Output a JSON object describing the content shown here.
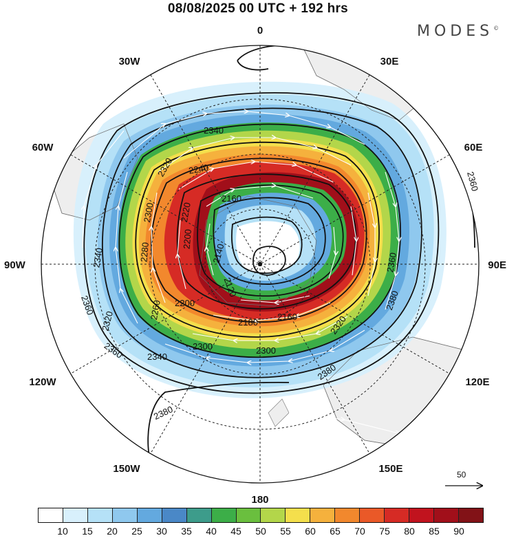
{
  "title": "08/08/2025  00 UTC  + 192 hrs",
  "brand": "MODES",
  "brand_mark": "©",
  "map": {
    "projection": "south-polar-stereographic",
    "longitude_labels": [
      "0",
      "30E",
      "60E",
      "90E",
      "120E",
      "150E",
      "180",
      "150W",
      "120W",
      "90W",
      "60W",
      "30W"
    ],
    "contour_field": "geopotential height",
    "contour_labels": [
      "2340",
      "2320",
      "2240",
      "2300",
      "2220",
      "2160",
      "2140",
      "2200",
      "2280",
      "2120",
      "2180",
      "2160",
      "2260",
      "2200",
      "2300",
      "2300",
      "2320",
      "2340",
      "2360",
      "2360",
      "2380",
      "2380",
      "2360",
      "2320",
      "2340",
      "2380",
      "2360"
    ],
    "wind_reference": {
      "value": "50",
      "icon": "arrow-right-icon"
    }
  },
  "colorbar": {
    "colors": [
      "#ffffff",
      "#d8f0fc",
      "#b5e1f7",
      "#8fc8ee",
      "#63a9df",
      "#4a88c7",
      "#3d9c8b",
      "#3cae48",
      "#6abf3e",
      "#b3d64a",
      "#f4df4c",
      "#f5b13d",
      "#f2882d",
      "#ea5928",
      "#d62b25",
      "#c1131e",
      "#a10f1a",
      "#821217"
    ],
    "labels": [
      "10",
      "15",
      "20",
      "25",
      "30",
      "35",
      "40",
      "45",
      "50",
      "55",
      "60",
      "65",
      "70",
      "75",
      "80",
      "85",
      "90"
    ]
  }
}
